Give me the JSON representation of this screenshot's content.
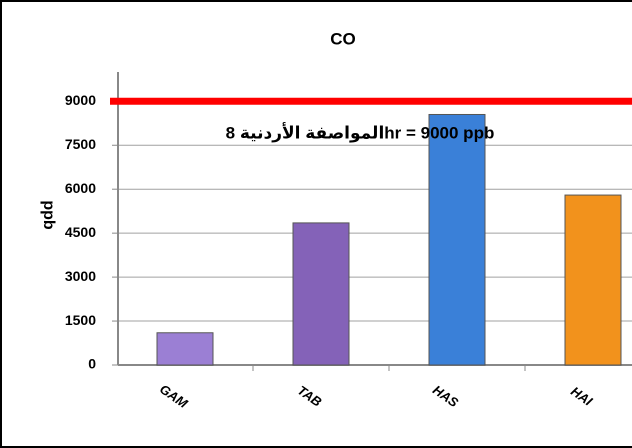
{
  "chart_data": {
    "type": "bar",
    "title": "CO",
    "y_label": "ppb",
    "categories": [
      "GAM",
      "TAB",
      "HAS",
      "HAI"
    ],
    "values": [
      1100,
      4850,
      8550,
      5800
    ],
    "colors": [
      "#9b7fd4",
      "#8462b8",
      "#3a80d8",
      "#f2921c"
    ],
    "ylim": [
      0,
      10000
    ],
    "yticks": [
      0,
      1500,
      3000,
      4500,
      6000,
      7500,
      9000
    ],
    "grid": true,
    "reference_line": {
      "value": 9000,
      "color": "#ff0000",
      "label": "المواصفة الأردنية 8hr = 9000 ppb"
    }
  }
}
